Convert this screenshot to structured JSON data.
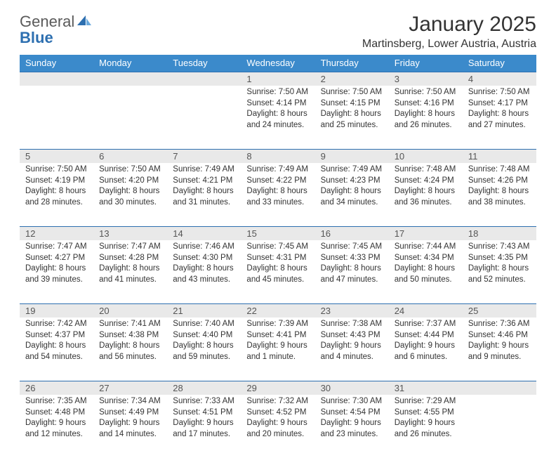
{
  "logo": {
    "text1": "General",
    "text2": "Blue"
  },
  "title": "January 2025",
  "location": "Martinsberg, Lower Austria, Austria",
  "colors": {
    "header_bg": "#3b8acb",
    "header_text": "#ffffff",
    "daynum_bg": "#e9e9e9",
    "daynum_border": "#2d6fb0",
    "body_text": "#333333",
    "logo_gray": "#5a5a5a",
    "logo_blue": "#2d6fb0"
  },
  "days_of_week": [
    "Sunday",
    "Monday",
    "Tuesday",
    "Wednesday",
    "Thursday",
    "Friday",
    "Saturday"
  ],
  "weeks": [
    [
      null,
      null,
      null,
      {
        "n": "1",
        "sr": "Sunrise: 7:50 AM",
        "ss": "Sunset: 4:14 PM",
        "d1": "Daylight: 8 hours",
        "d2": "and 24 minutes."
      },
      {
        "n": "2",
        "sr": "Sunrise: 7:50 AM",
        "ss": "Sunset: 4:15 PM",
        "d1": "Daylight: 8 hours",
        "d2": "and 25 minutes."
      },
      {
        "n": "3",
        "sr": "Sunrise: 7:50 AM",
        "ss": "Sunset: 4:16 PM",
        "d1": "Daylight: 8 hours",
        "d2": "and 26 minutes."
      },
      {
        "n": "4",
        "sr": "Sunrise: 7:50 AM",
        "ss": "Sunset: 4:17 PM",
        "d1": "Daylight: 8 hours",
        "d2": "and 27 minutes."
      }
    ],
    [
      {
        "n": "5",
        "sr": "Sunrise: 7:50 AM",
        "ss": "Sunset: 4:19 PM",
        "d1": "Daylight: 8 hours",
        "d2": "and 28 minutes."
      },
      {
        "n": "6",
        "sr": "Sunrise: 7:50 AM",
        "ss": "Sunset: 4:20 PM",
        "d1": "Daylight: 8 hours",
        "d2": "and 30 minutes."
      },
      {
        "n": "7",
        "sr": "Sunrise: 7:49 AM",
        "ss": "Sunset: 4:21 PM",
        "d1": "Daylight: 8 hours",
        "d2": "and 31 minutes."
      },
      {
        "n": "8",
        "sr": "Sunrise: 7:49 AM",
        "ss": "Sunset: 4:22 PM",
        "d1": "Daylight: 8 hours",
        "d2": "and 33 minutes."
      },
      {
        "n": "9",
        "sr": "Sunrise: 7:49 AM",
        "ss": "Sunset: 4:23 PM",
        "d1": "Daylight: 8 hours",
        "d2": "and 34 minutes."
      },
      {
        "n": "10",
        "sr": "Sunrise: 7:48 AM",
        "ss": "Sunset: 4:24 PM",
        "d1": "Daylight: 8 hours",
        "d2": "and 36 minutes."
      },
      {
        "n": "11",
        "sr": "Sunrise: 7:48 AM",
        "ss": "Sunset: 4:26 PM",
        "d1": "Daylight: 8 hours",
        "d2": "and 38 minutes."
      }
    ],
    [
      {
        "n": "12",
        "sr": "Sunrise: 7:47 AM",
        "ss": "Sunset: 4:27 PM",
        "d1": "Daylight: 8 hours",
        "d2": "and 39 minutes."
      },
      {
        "n": "13",
        "sr": "Sunrise: 7:47 AM",
        "ss": "Sunset: 4:28 PM",
        "d1": "Daylight: 8 hours",
        "d2": "and 41 minutes."
      },
      {
        "n": "14",
        "sr": "Sunrise: 7:46 AM",
        "ss": "Sunset: 4:30 PM",
        "d1": "Daylight: 8 hours",
        "d2": "and 43 minutes."
      },
      {
        "n": "15",
        "sr": "Sunrise: 7:45 AM",
        "ss": "Sunset: 4:31 PM",
        "d1": "Daylight: 8 hours",
        "d2": "and 45 minutes."
      },
      {
        "n": "16",
        "sr": "Sunrise: 7:45 AM",
        "ss": "Sunset: 4:33 PM",
        "d1": "Daylight: 8 hours",
        "d2": "and 47 minutes."
      },
      {
        "n": "17",
        "sr": "Sunrise: 7:44 AM",
        "ss": "Sunset: 4:34 PM",
        "d1": "Daylight: 8 hours",
        "d2": "and 50 minutes."
      },
      {
        "n": "18",
        "sr": "Sunrise: 7:43 AM",
        "ss": "Sunset: 4:35 PM",
        "d1": "Daylight: 8 hours",
        "d2": "and 52 minutes."
      }
    ],
    [
      {
        "n": "19",
        "sr": "Sunrise: 7:42 AM",
        "ss": "Sunset: 4:37 PM",
        "d1": "Daylight: 8 hours",
        "d2": "and 54 minutes."
      },
      {
        "n": "20",
        "sr": "Sunrise: 7:41 AM",
        "ss": "Sunset: 4:38 PM",
        "d1": "Daylight: 8 hours",
        "d2": "and 56 minutes."
      },
      {
        "n": "21",
        "sr": "Sunrise: 7:40 AM",
        "ss": "Sunset: 4:40 PM",
        "d1": "Daylight: 8 hours",
        "d2": "and 59 minutes."
      },
      {
        "n": "22",
        "sr": "Sunrise: 7:39 AM",
        "ss": "Sunset: 4:41 PM",
        "d1": "Daylight: 9 hours",
        "d2": "and 1 minute."
      },
      {
        "n": "23",
        "sr": "Sunrise: 7:38 AM",
        "ss": "Sunset: 4:43 PM",
        "d1": "Daylight: 9 hours",
        "d2": "and 4 minutes."
      },
      {
        "n": "24",
        "sr": "Sunrise: 7:37 AM",
        "ss": "Sunset: 4:44 PM",
        "d1": "Daylight: 9 hours",
        "d2": "and 6 minutes."
      },
      {
        "n": "25",
        "sr": "Sunrise: 7:36 AM",
        "ss": "Sunset: 4:46 PM",
        "d1": "Daylight: 9 hours",
        "d2": "and 9 minutes."
      }
    ],
    [
      {
        "n": "26",
        "sr": "Sunrise: 7:35 AM",
        "ss": "Sunset: 4:48 PM",
        "d1": "Daylight: 9 hours",
        "d2": "and 12 minutes."
      },
      {
        "n": "27",
        "sr": "Sunrise: 7:34 AM",
        "ss": "Sunset: 4:49 PM",
        "d1": "Daylight: 9 hours",
        "d2": "and 14 minutes."
      },
      {
        "n": "28",
        "sr": "Sunrise: 7:33 AM",
        "ss": "Sunset: 4:51 PM",
        "d1": "Daylight: 9 hours",
        "d2": "and 17 minutes."
      },
      {
        "n": "29",
        "sr": "Sunrise: 7:32 AM",
        "ss": "Sunset: 4:52 PM",
        "d1": "Daylight: 9 hours",
        "d2": "and 20 minutes."
      },
      {
        "n": "30",
        "sr": "Sunrise: 7:30 AM",
        "ss": "Sunset: 4:54 PM",
        "d1": "Daylight: 9 hours",
        "d2": "and 23 minutes."
      },
      {
        "n": "31",
        "sr": "Sunrise: 7:29 AM",
        "ss": "Sunset: 4:55 PM",
        "d1": "Daylight: 9 hours",
        "d2": "and 26 minutes."
      },
      null
    ]
  ]
}
